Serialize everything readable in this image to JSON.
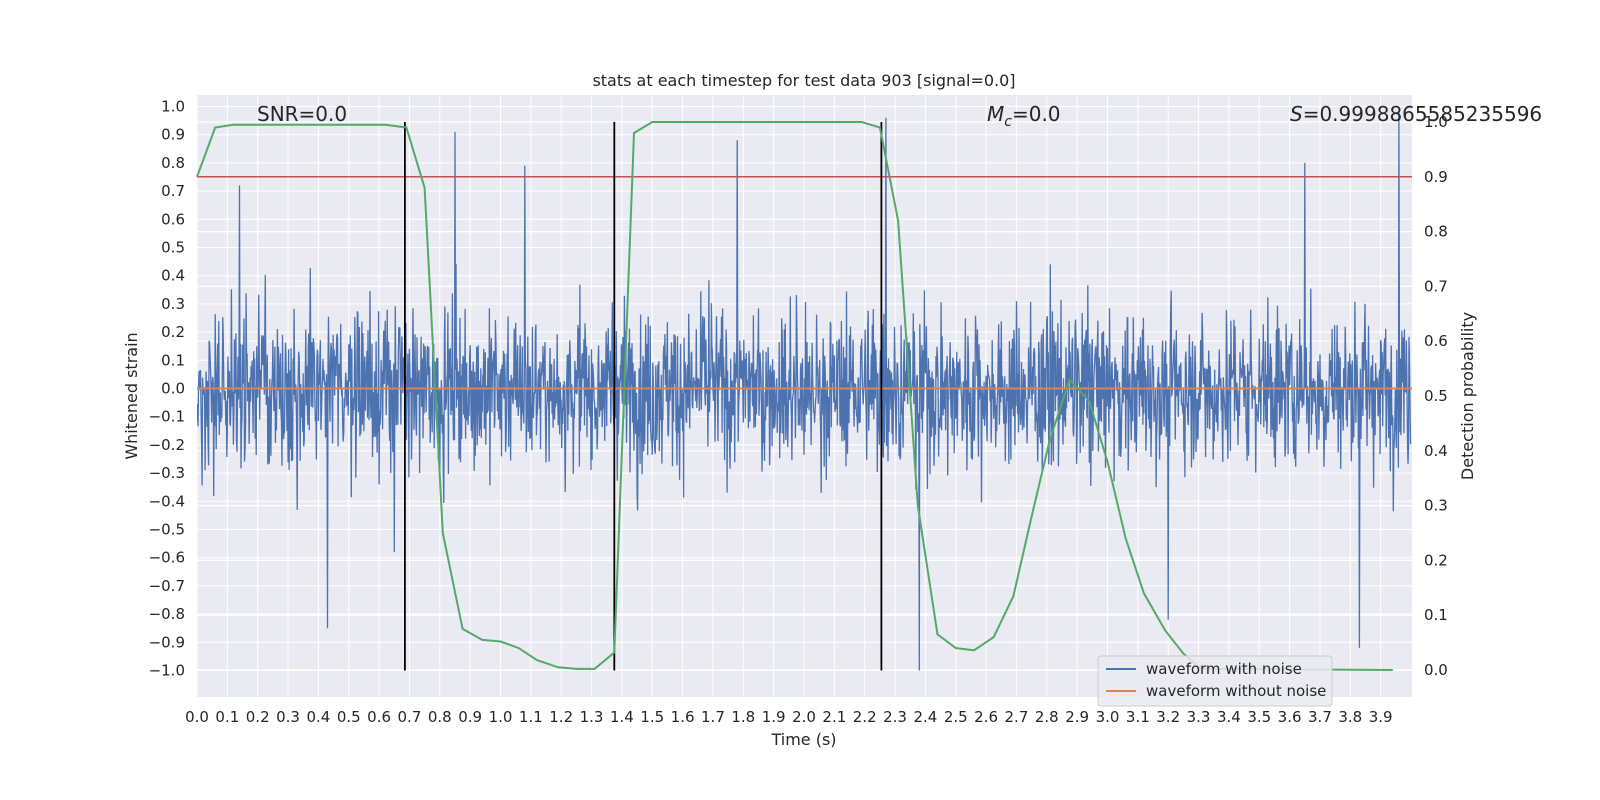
{
  "chart_data": {
    "type": "line",
    "title": "stats at each timestep for test data 903 [signal=0.0]",
    "xlabel": "Time (s)",
    "ylabel": "Whitened strain",
    "y2label": "Detection probability",
    "xlim": [
      0.0,
      4.0
    ],
    "ylim": [
      -1.1,
      1.05
    ],
    "y2lim": [
      -0.05,
      1.0
    ],
    "x_ticks": [
      "0.0",
      "0.1",
      "0.2",
      "0.3",
      "0.4",
      "0.5",
      "0.6",
      "0.7",
      "0.8",
      "0.9",
      "1.0",
      "1.1",
      "1.2",
      "1.3",
      "1.4",
      "1.5",
      "1.6",
      "1.7",
      "1.8",
      "1.9",
      "2.0",
      "2.1",
      "2.2",
      "2.3",
      "2.4",
      "2.5",
      "2.6",
      "2.7",
      "2.8",
      "2.9",
      "3.0",
      "3.1",
      "3.2",
      "3.3",
      "3.4",
      "3.5",
      "3.6",
      "3.7",
      "3.8",
      "3.9"
    ],
    "y_ticks": [
      "1.0",
      "0.9",
      "0.8",
      "0.7",
      "0.6",
      "0.5",
      "0.4",
      "0.3",
      "0.2",
      "0.1",
      "0.0",
      "−0.1",
      "−0.2",
      "−0.3",
      "−0.4",
      "−0.5",
      "−0.6",
      "−0.7",
      "−0.8",
      "−0.9",
      "−1.0"
    ],
    "y2_ticks": [
      "0.0",
      "0.1",
      "0.2",
      "0.3",
      "0.4",
      "0.5",
      "0.6",
      "0.7",
      "0.8",
      "0.9",
      "1.0"
    ],
    "annotations": {
      "snr": "SNR=0.0",
      "mc_symbol": "M",
      "mc_sub": "c",
      "mc_value": "=0.0",
      "s_symbol": "S",
      "s_value": "=0.9998865585235596"
    },
    "threshold": 0.9,
    "vertical_lines": [
      0.685,
      1.375,
      2.255
    ],
    "noise_waveform": {
      "name": "waveform with noise",
      "color": "#4c72b0",
      "typical_amplitude": 0.42,
      "peak_samples": [
        [
          0.85,
          0.91
        ],
        [
          1.08,
          0.79
        ],
        [
          1.78,
          0.88
        ],
        [
          2.27,
          0.96
        ],
        [
          3.65,
          0.8
        ],
        [
          3.96,
          0.98
        ],
        [
          2.38,
          -1.0
        ],
        [
          0.43,
          -0.85
        ],
        [
          3.83,
          -0.92
        ],
        [
          0.14,
          0.72
        ],
        [
          0.65,
          -0.58
        ],
        [
          3.2,
          -0.82
        ]
      ]
    },
    "clean_waveform": {
      "name": "waveform without noise",
      "color": "#dd8452",
      "value": 0.0
    },
    "detection_probability": {
      "color": "#55a868",
      "x": [
        0.0,
        0.06,
        0.12,
        0.62,
        0.69,
        0.75,
        0.81,
        0.875,
        0.94,
        1.0,
        1.06,
        1.12,
        1.19,
        1.25,
        1.31,
        1.375,
        1.44,
        1.5,
        2.19,
        2.25,
        2.31,
        2.375,
        2.44,
        2.5,
        2.56,
        2.625,
        2.69,
        2.75,
        2.81,
        2.875,
        2.94,
        3.0,
        3.06,
        3.12,
        3.19,
        3.25,
        3.31,
        3.94
      ],
      "y": [
        0.9,
        0.99,
        0.995,
        0.995,
        0.99,
        0.88,
        0.25,
        0.075,
        0.055,
        0.052,
        0.04,
        0.018,
        0.005,
        0.002,
        0.002,
        0.032,
        0.98,
        1.0,
        1.0,
        0.99,
        0.82,
        0.3,
        0.065,
        0.04,
        0.036,
        0.06,
        0.135,
        0.28,
        0.42,
        0.53,
        0.49,
        0.38,
        0.24,
        0.14,
        0.072,
        0.03,
        0.002,
        0.0
      ]
    },
    "threshold_color": "#c44e52",
    "legend": {
      "position": "lower-right",
      "entries": [
        "waveform with noise",
        "waveform without noise"
      ]
    },
    "grid": true
  }
}
